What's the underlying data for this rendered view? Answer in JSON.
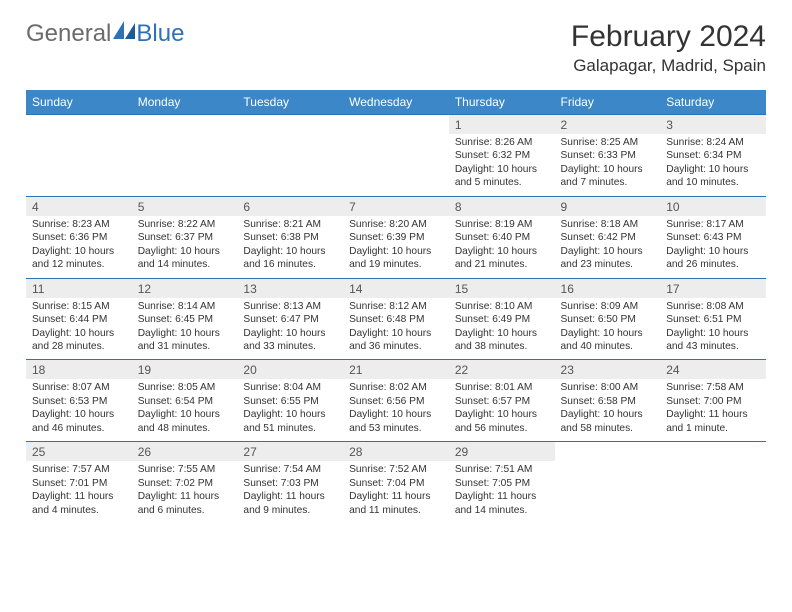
{
  "logo": {
    "text1": "General",
    "text2": "Blue"
  },
  "title": {
    "month": "February 2024",
    "location": "Galapagar, Madrid, Spain"
  },
  "colors": {
    "header_bg": "#3b87c8",
    "row_border": "#2d72b8",
    "daynum_bg": "#ededed"
  },
  "day_headers": [
    "Sunday",
    "Monday",
    "Tuesday",
    "Wednesday",
    "Thursday",
    "Friday",
    "Saturday"
  ],
  "weeks": [
    [
      null,
      null,
      null,
      null,
      {
        "n": "1",
        "sr": "Sunrise: 8:26 AM",
        "ss": "Sunset: 6:32 PM",
        "dl": "Daylight: 10 hours and 5 minutes."
      },
      {
        "n": "2",
        "sr": "Sunrise: 8:25 AM",
        "ss": "Sunset: 6:33 PM",
        "dl": "Daylight: 10 hours and 7 minutes."
      },
      {
        "n": "3",
        "sr": "Sunrise: 8:24 AM",
        "ss": "Sunset: 6:34 PM",
        "dl": "Daylight: 10 hours and 10 minutes."
      }
    ],
    [
      {
        "n": "4",
        "sr": "Sunrise: 8:23 AM",
        "ss": "Sunset: 6:36 PM",
        "dl": "Daylight: 10 hours and 12 minutes."
      },
      {
        "n": "5",
        "sr": "Sunrise: 8:22 AM",
        "ss": "Sunset: 6:37 PM",
        "dl": "Daylight: 10 hours and 14 minutes."
      },
      {
        "n": "6",
        "sr": "Sunrise: 8:21 AM",
        "ss": "Sunset: 6:38 PM",
        "dl": "Daylight: 10 hours and 16 minutes."
      },
      {
        "n": "7",
        "sr": "Sunrise: 8:20 AM",
        "ss": "Sunset: 6:39 PM",
        "dl": "Daylight: 10 hours and 19 minutes."
      },
      {
        "n": "8",
        "sr": "Sunrise: 8:19 AM",
        "ss": "Sunset: 6:40 PM",
        "dl": "Daylight: 10 hours and 21 minutes."
      },
      {
        "n": "9",
        "sr": "Sunrise: 8:18 AM",
        "ss": "Sunset: 6:42 PM",
        "dl": "Daylight: 10 hours and 23 minutes."
      },
      {
        "n": "10",
        "sr": "Sunrise: 8:17 AM",
        "ss": "Sunset: 6:43 PM",
        "dl": "Daylight: 10 hours and 26 minutes."
      }
    ],
    [
      {
        "n": "11",
        "sr": "Sunrise: 8:15 AM",
        "ss": "Sunset: 6:44 PM",
        "dl": "Daylight: 10 hours and 28 minutes."
      },
      {
        "n": "12",
        "sr": "Sunrise: 8:14 AM",
        "ss": "Sunset: 6:45 PM",
        "dl": "Daylight: 10 hours and 31 minutes."
      },
      {
        "n": "13",
        "sr": "Sunrise: 8:13 AM",
        "ss": "Sunset: 6:47 PM",
        "dl": "Daylight: 10 hours and 33 minutes."
      },
      {
        "n": "14",
        "sr": "Sunrise: 8:12 AM",
        "ss": "Sunset: 6:48 PM",
        "dl": "Daylight: 10 hours and 36 minutes."
      },
      {
        "n": "15",
        "sr": "Sunrise: 8:10 AM",
        "ss": "Sunset: 6:49 PM",
        "dl": "Daylight: 10 hours and 38 minutes."
      },
      {
        "n": "16",
        "sr": "Sunrise: 8:09 AM",
        "ss": "Sunset: 6:50 PM",
        "dl": "Daylight: 10 hours and 40 minutes."
      },
      {
        "n": "17",
        "sr": "Sunrise: 8:08 AM",
        "ss": "Sunset: 6:51 PM",
        "dl": "Daylight: 10 hours and 43 minutes."
      }
    ],
    [
      {
        "n": "18",
        "sr": "Sunrise: 8:07 AM",
        "ss": "Sunset: 6:53 PM",
        "dl": "Daylight: 10 hours and 46 minutes."
      },
      {
        "n": "19",
        "sr": "Sunrise: 8:05 AM",
        "ss": "Sunset: 6:54 PM",
        "dl": "Daylight: 10 hours and 48 minutes."
      },
      {
        "n": "20",
        "sr": "Sunrise: 8:04 AM",
        "ss": "Sunset: 6:55 PM",
        "dl": "Daylight: 10 hours and 51 minutes."
      },
      {
        "n": "21",
        "sr": "Sunrise: 8:02 AM",
        "ss": "Sunset: 6:56 PM",
        "dl": "Daylight: 10 hours and 53 minutes."
      },
      {
        "n": "22",
        "sr": "Sunrise: 8:01 AM",
        "ss": "Sunset: 6:57 PM",
        "dl": "Daylight: 10 hours and 56 minutes."
      },
      {
        "n": "23",
        "sr": "Sunrise: 8:00 AM",
        "ss": "Sunset: 6:58 PM",
        "dl": "Daylight: 10 hours and 58 minutes."
      },
      {
        "n": "24",
        "sr": "Sunrise: 7:58 AM",
        "ss": "Sunset: 7:00 PM",
        "dl": "Daylight: 11 hours and 1 minute."
      }
    ],
    [
      {
        "n": "25",
        "sr": "Sunrise: 7:57 AM",
        "ss": "Sunset: 7:01 PM",
        "dl": "Daylight: 11 hours and 4 minutes."
      },
      {
        "n": "26",
        "sr": "Sunrise: 7:55 AM",
        "ss": "Sunset: 7:02 PM",
        "dl": "Daylight: 11 hours and 6 minutes."
      },
      {
        "n": "27",
        "sr": "Sunrise: 7:54 AM",
        "ss": "Sunset: 7:03 PM",
        "dl": "Daylight: 11 hours and 9 minutes."
      },
      {
        "n": "28",
        "sr": "Sunrise: 7:52 AM",
        "ss": "Sunset: 7:04 PM",
        "dl": "Daylight: 11 hours and 11 minutes."
      },
      {
        "n": "29",
        "sr": "Sunrise: 7:51 AM",
        "ss": "Sunset: 7:05 PM",
        "dl": "Daylight: 11 hours and 14 minutes."
      },
      null,
      null
    ]
  ]
}
